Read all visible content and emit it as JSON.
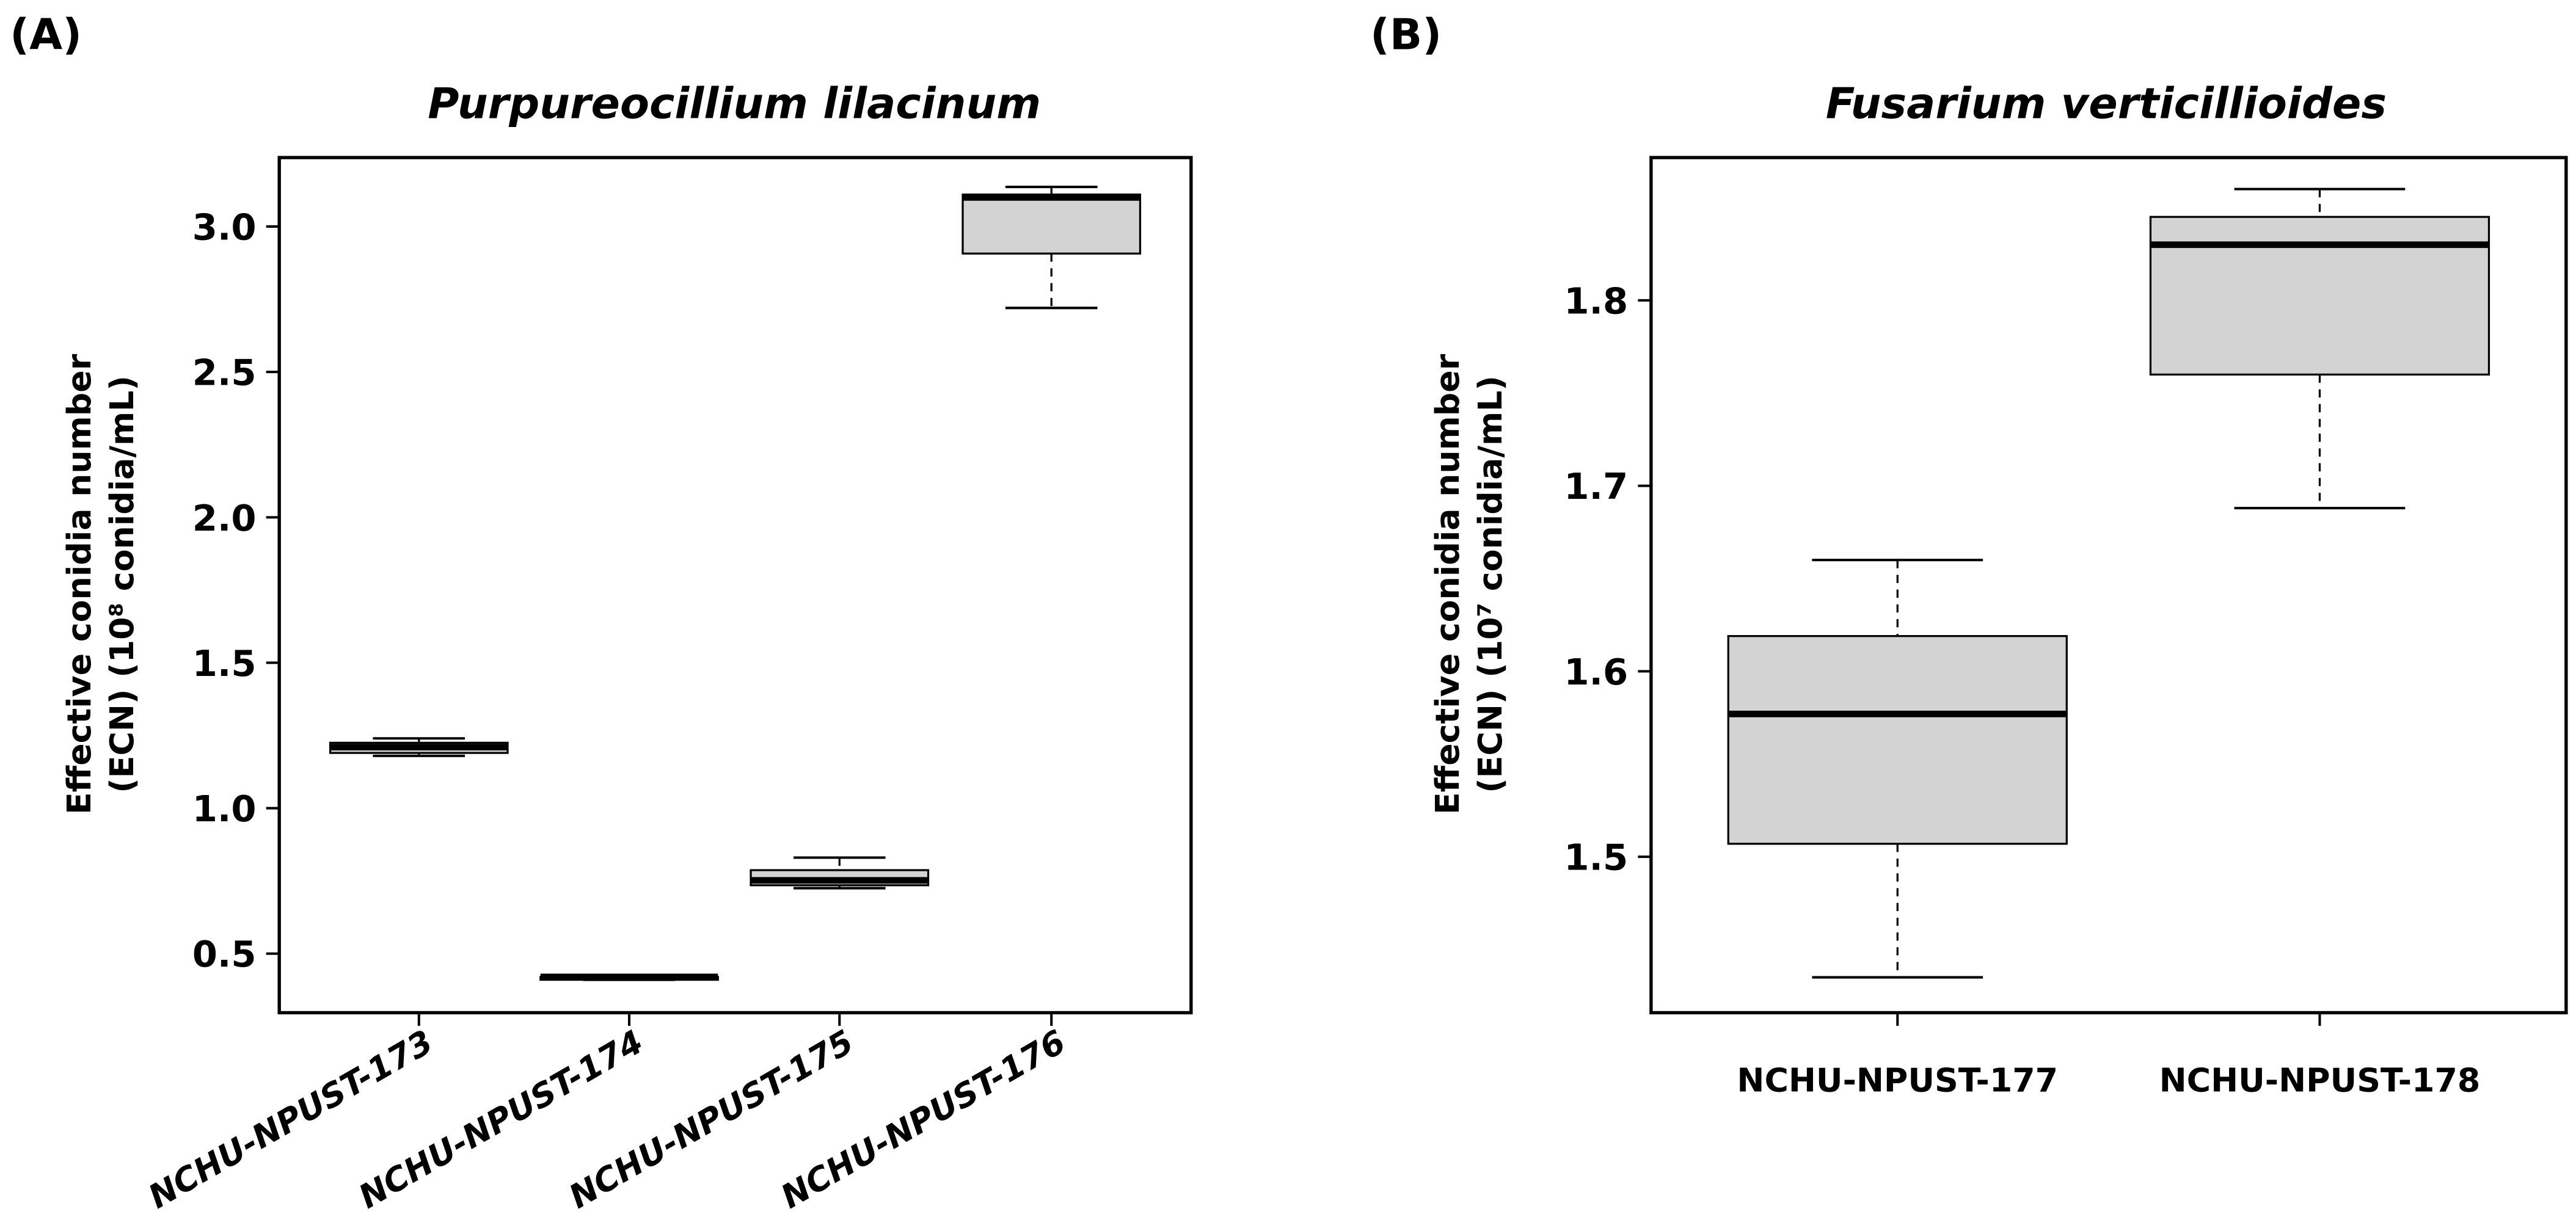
{
  "figure": {
    "panel_a_letter": "(A)",
    "panel_b_letter": "(B)"
  },
  "chart_data": [
    {
      "type": "box",
      "panel": "A",
      "title": "Purpureocillium lilacinum",
      "xlabel": "",
      "ylabel_line1": "Effective conidia number",
      "ylabel_line2": "(ECN) (10⁸ conidia/mL)",
      "ylim": [
        0.3,
        3.22
      ],
      "yticks": [
        "0.5",
        "1.0",
        "1.5",
        "2.0",
        "2.5",
        "3.0"
      ],
      "ytick_values": [
        0.5,
        1.0,
        1.5,
        2.0,
        2.5,
        3.0
      ],
      "categories": [
        "NCHU-NPUST-173",
        "NCHU-NPUST-174",
        "NCHU-NPUST-175",
        "NCHU-NPUST-176"
      ],
      "boxes": [
        {
          "name": "NCHU-NPUST-173",
          "whisker_low": 1.18,
          "q1": 1.19,
          "median": 1.21,
          "q3": 1.225,
          "whisker_high": 1.24
        },
        {
          "name": "NCHU-NPUST-174",
          "whisker_low": 0.41,
          "q1": 0.41,
          "median": 0.42,
          "q3": 0.42,
          "whisker_high": 0.42
        },
        {
          "name": "NCHU-NPUST-175",
          "whisker_low": 0.725,
          "q1": 0.735,
          "median": 0.752,
          "q3": 0.787,
          "whisker_high": 0.83
        },
        {
          "name": "NCHU-NPUST-176",
          "whisker_low": 2.72,
          "q1": 2.907,
          "median": 3.1,
          "q3": 3.11,
          "whisker_high": 3.136
        }
      ],
      "box_fill": "#d3d3d3",
      "grid": false,
      "x_label_rotation": -45
    },
    {
      "type": "box",
      "panel": "B",
      "title": "Fusarium verticillioides",
      "xlabel": "",
      "ylabel_line1": "Effective conidia number",
      "ylabel_line2": "(ECN) (10⁷ conidia/mL)",
      "ylim": [
        1.42,
        1.877
      ],
      "yticks": [
        "1.5",
        "1.6",
        "1.7",
        "1.8"
      ],
      "ytick_values": [
        1.5,
        1.6,
        1.7,
        1.8
      ],
      "categories": [
        "NCHU-NPUST-177",
        "NCHU-NPUST-178"
      ],
      "boxes": [
        {
          "name": "NCHU-NPUST-177",
          "whisker_low": 1.435,
          "q1": 1.507,
          "median": 1.577,
          "q3": 1.619,
          "whisker_high": 1.66
        },
        {
          "name": "NCHU-NPUST-178",
          "whisker_low": 1.688,
          "q1": 1.76,
          "median": 1.83,
          "q3": 1.845,
          "whisker_high": 1.86
        }
      ],
      "box_fill": "#d3d3d3",
      "grid": false,
      "x_label_rotation": 0
    }
  ]
}
